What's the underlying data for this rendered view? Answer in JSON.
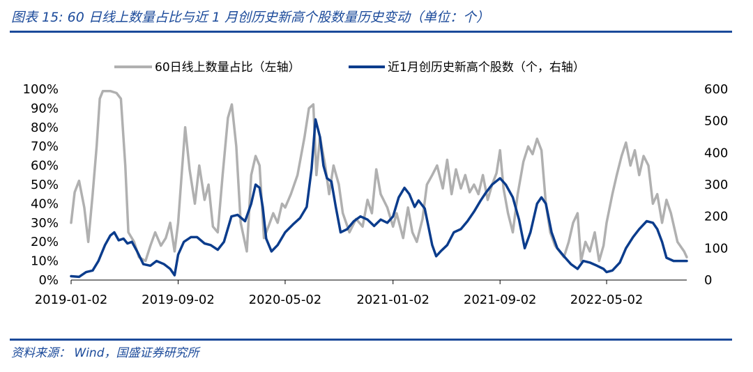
{
  "header": {
    "title": "图表 15:  60 日线上数量占比与近 1 月创历史新高个股数量历史变动（单位：个）"
  },
  "footer": {
    "source": "资料来源：  Wind，国盛证券研究所"
  },
  "colors": {
    "series_left": "#b0b0b0",
    "series_right": "#0b3c8c",
    "accent": "#1b4a9a"
  },
  "chart_data": {
    "type": "line",
    "legend": {
      "position": "top",
      "entries": [
        "60日线上数量占比（左轴）",
        "近1月创历史新高个股数（个，右轴）"
      ]
    },
    "x_tick_labels": [
      "2019-01-02",
      "2019-09-02",
      "2020-05-02",
      "2021-01-02",
      "2021-09-02",
      "2022-05-02"
    ],
    "x_tick_dates": [
      "2019-01-02",
      "2019-09-02",
      "2020-05-02",
      "2021-01-02",
      "2021-09-02",
      "2022-05-02"
    ],
    "x_range": [
      "2019-01-02",
      "2022-10-31"
    ],
    "y_left": {
      "ylim": [
        0,
        100
      ],
      "ticks": [
        "0%",
        "10%",
        "20%",
        "30%",
        "40%",
        "50%",
        "60%",
        "70%",
        "80%",
        "90%",
        "100%"
      ],
      "unit": "%"
    },
    "y_right": {
      "ylim": [
        0,
        600
      ],
      "ticks": [
        "0",
        "100",
        "200",
        "300",
        "400",
        "500",
        "600"
      ]
    },
    "grid": false,
    "series": [
      {
        "name": "60日线上数量占比（左轴）",
        "axis": "left",
        "points": [
          [
            "2019-01-02",
            30
          ],
          [
            "2019-01-10",
            46
          ],
          [
            "2019-01-20",
            52
          ],
          [
            "2019-02-01",
            38
          ],
          [
            "2019-02-10",
            20
          ],
          [
            "2019-02-20",
            45
          ],
          [
            "2019-03-01",
            70
          ],
          [
            "2019-03-08",
            95
          ],
          [
            "2019-03-15",
            99
          ],
          [
            "2019-04-01",
            99
          ],
          [
            "2019-04-15",
            98
          ],
          [
            "2019-04-25",
            95
          ],
          [
            "2019-05-05",
            60
          ],
          [
            "2019-05-12",
            25
          ],
          [
            "2019-05-25",
            20
          ],
          [
            "2019-06-05",
            12
          ],
          [
            "2019-06-20",
            10
          ],
          [
            "2019-07-01",
            18
          ],
          [
            "2019-07-12",
            25
          ],
          [
            "2019-07-25",
            18
          ],
          [
            "2019-08-05",
            22
          ],
          [
            "2019-08-15",
            30
          ],
          [
            "2019-08-25",
            15
          ],
          [
            "2019-09-02",
            30
          ],
          [
            "2019-09-10",
            55
          ],
          [
            "2019-09-18",
            80
          ],
          [
            "2019-09-28",
            58
          ],
          [
            "2019-10-10",
            40
          ],
          [
            "2019-10-20",
            60
          ],
          [
            "2019-11-01",
            42
          ],
          [
            "2019-11-10",
            50
          ],
          [
            "2019-11-20",
            28
          ],
          [
            "2019-12-01",
            25
          ],
          [
            "2019-12-12",
            55
          ],
          [
            "2019-12-24",
            85
          ],
          [
            "2020-01-02",
            92
          ],
          [
            "2020-01-12",
            70
          ],
          [
            "2020-01-22",
            30
          ],
          [
            "2020-02-05",
            15
          ],
          [
            "2020-02-15",
            55
          ],
          [
            "2020-02-25",
            65
          ],
          [
            "2020-03-05",
            60
          ],
          [
            "2020-03-15",
            22
          ],
          [
            "2020-03-25",
            28
          ],
          [
            "2020-04-05",
            35
          ],
          [
            "2020-04-15",
            30
          ],
          [
            "2020-04-25",
            40
          ],
          [
            "2020-05-02",
            38
          ],
          [
            "2020-05-15",
            45
          ],
          [
            "2020-05-30",
            55
          ],
          [
            "2020-06-15",
            75
          ],
          [
            "2020-06-25",
            90
          ],
          [
            "2020-07-05",
            92
          ],
          [
            "2020-07-12",
            55
          ],
          [
            "2020-07-20",
            75
          ],
          [
            "2020-08-01",
            60
          ],
          [
            "2020-08-10",
            45
          ],
          [
            "2020-08-20",
            60
          ],
          [
            "2020-09-01",
            50
          ],
          [
            "2020-09-10",
            35
          ],
          [
            "2020-09-25",
            25
          ],
          [
            "2020-10-10",
            32
          ],
          [
            "2020-10-25",
            28
          ],
          [
            "2020-11-05",
            42
          ],
          [
            "2020-11-15",
            35
          ],
          [
            "2020-11-25",
            58
          ],
          [
            "2020-12-05",
            45
          ],
          [
            "2020-12-20",
            38
          ],
          [
            "2021-01-02",
            28
          ],
          [
            "2021-01-10",
            35
          ],
          [
            "2021-01-25",
            22
          ],
          [
            "2021-02-05",
            38
          ],
          [
            "2021-02-15",
            25
          ],
          [
            "2021-02-25",
            20
          ],
          [
            "2021-03-10",
            32
          ],
          [
            "2021-03-20",
            50
          ],
          [
            "2021-04-01",
            55
          ],
          [
            "2021-04-12",
            60
          ],
          [
            "2021-04-25",
            48
          ],
          [
            "2021-05-05",
            63
          ],
          [
            "2021-05-15",
            45
          ],
          [
            "2021-05-25",
            58
          ],
          [
            "2021-06-05",
            48
          ],
          [
            "2021-06-15",
            55
          ],
          [
            "2021-06-25",
            46
          ],
          [
            "2021-07-05",
            50
          ],
          [
            "2021-07-15",
            45
          ],
          [
            "2021-07-25",
            55
          ],
          [
            "2021-08-05",
            42
          ],
          [
            "2021-08-15",
            50
          ],
          [
            "2021-08-25",
            56
          ],
          [
            "2021-09-02",
            68
          ],
          [
            "2021-09-10",
            48
          ],
          [
            "2021-09-20",
            35
          ],
          [
            "2021-10-01",
            25
          ],
          [
            "2021-10-12",
            45
          ],
          [
            "2021-10-25",
            62
          ],
          [
            "2021-11-05",
            70
          ],
          [
            "2021-11-15",
            66
          ],
          [
            "2021-11-25",
            74
          ],
          [
            "2021-12-05",
            68
          ],
          [
            "2021-12-15",
            40
          ],
          [
            "2021-12-25",
            25
          ],
          [
            "2022-01-05",
            18
          ],
          [
            "2022-01-15",
            15
          ],
          [
            "2022-01-25",
            12
          ],
          [
            "2022-02-05",
            20
          ],
          [
            "2022-02-15",
            30
          ],
          [
            "2022-02-25",
            35
          ],
          [
            "2022-03-05",
            10
          ],
          [
            "2022-03-15",
            20
          ],
          [
            "2022-03-25",
            15
          ],
          [
            "2022-04-05",
            25
          ],
          [
            "2022-04-15",
            10
          ],
          [
            "2022-04-25",
            18
          ],
          [
            "2022-05-02",
            30
          ],
          [
            "2022-05-15",
            45
          ],
          [
            "2022-05-25",
            55
          ],
          [
            "2022-06-05",
            65
          ],
          [
            "2022-06-15",
            72
          ],
          [
            "2022-06-25",
            60
          ],
          [
            "2022-07-05",
            68
          ],
          [
            "2022-07-15",
            55
          ],
          [
            "2022-07-25",
            65
          ],
          [
            "2022-08-05",
            60
          ],
          [
            "2022-08-15",
            40
          ],
          [
            "2022-08-25",
            45
          ],
          [
            "2022-09-05",
            30
          ],
          [
            "2022-09-15",
            42
          ],
          [
            "2022-09-25",
            35
          ],
          [
            "2022-10-10",
            20
          ],
          [
            "2022-10-25",
            15
          ],
          [
            "2022-10-31",
            12
          ]
        ]
      },
      {
        "name": "近1月创历史新高个股数（个，右轴）",
        "axis": "right",
        "points": [
          [
            "2019-01-02",
            12
          ],
          [
            "2019-01-20",
            10
          ],
          [
            "2019-02-05",
            25
          ],
          [
            "2019-02-20",
            30
          ],
          [
            "2019-03-05",
            60
          ],
          [
            "2019-03-20",
            110
          ],
          [
            "2019-04-01",
            140
          ],
          [
            "2019-04-10",
            150
          ],
          [
            "2019-04-20",
            125
          ],
          [
            "2019-05-01",
            130
          ],
          [
            "2019-05-10",
            115
          ],
          [
            "2019-05-20",
            120
          ],
          [
            "2019-06-01",
            90
          ],
          [
            "2019-06-15",
            50
          ],
          [
            "2019-07-01",
            45
          ],
          [
            "2019-07-15",
            60
          ],
          [
            "2019-08-01",
            50
          ],
          [
            "2019-08-15",
            35
          ],
          [
            "2019-08-25",
            15
          ],
          [
            "2019-09-02",
            80
          ],
          [
            "2019-09-15",
            120
          ],
          [
            "2019-10-01",
            135
          ],
          [
            "2019-10-15",
            135
          ],
          [
            "2019-11-01",
            115
          ],
          [
            "2019-11-15",
            110
          ],
          [
            "2019-12-01",
            95
          ],
          [
            "2019-12-15",
            120
          ],
          [
            "2020-01-01",
            200
          ],
          [
            "2020-01-15",
            205
          ],
          [
            "2020-02-01",
            185
          ],
          [
            "2020-02-15",
            240
          ],
          [
            "2020-02-25",
            300
          ],
          [
            "2020-03-05",
            290
          ],
          [
            "2020-03-12",
            230
          ],
          [
            "2020-03-20",
            130
          ],
          [
            "2020-04-01",
            90
          ],
          [
            "2020-04-15",
            110
          ],
          [
            "2020-05-02",
            150
          ],
          [
            "2020-05-20",
            175
          ],
          [
            "2020-06-05",
            195
          ],
          [
            "2020-06-20",
            230
          ],
          [
            "2020-07-01",
            350
          ],
          [
            "2020-07-10",
            505
          ],
          [
            "2020-07-20",
            450
          ],
          [
            "2020-07-28",
            360
          ],
          [
            "2020-08-05",
            320
          ],
          [
            "2020-08-15",
            310
          ],
          [
            "2020-08-25",
            230
          ],
          [
            "2020-09-05",
            150
          ],
          [
            "2020-09-20",
            160
          ],
          [
            "2020-10-05",
            185
          ],
          [
            "2020-10-20",
            200
          ],
          [
            "2020-11-05",
            190
          ],
          [
            "2020-11-20",
            170
          ],
          [
            "2020-12-05",
            190
          ],
          [
            "2020-12-20",
            180
          ],
          [
            "2021-01-02",
            200
          ],
          [
            "2021-01-15",
            260
          ],
          [
            "2021-01-28",
            290
          ],
          [
            "2021-02-08",
            270
          ],
          [
            "2021-02-20",
            230
          ],
          [
            "2021-03-01",
            250
          ],
          [
            "2021-03-15",
            225
          ],
          [
            "2021-04-01",
            110
          ],
          [
            "2021-04-10",
            75
          ],
          [
            "2021-04-20",
            90
          ],
          [
            "2021-05-05",
            110
          ],
          [
            "2021-05-20",
            150
          ],
          [
            "2021-06-05",
            160
          ],
          [
            "2021-06-20",
            185
          ],
          [
            "2021-07-05",
            215
          ],
          [
            "2021-07-20",
            250
          ],
          [
            "2021-08-01",
            275
          ],
          [
            "2021-08-15",
            300
          ],
          [
            "2021-09-02",
            320
          ],
          [
            "2021-09-15",
            300
          ],
          [
            "2021-10-01",
            260
          ],
          [
            "2021-10-15",
            190
          ],
          [
            "2021-10-28",
            100
          ],
          [
            "2021-11-10",
            150
          ],
          [
            "2021-11-25",
            240
          ],
          [
            "2021-12-05",
            260
          ],
          [
            "2021-12-15",
            240
          ],
          [
            "2021-12-28",
            150
          ],
          [
            "2022-01-10",
            100
          ],
          [
            "2022-01-25",
            75
          ],
          [
            "2022-02-10",
            50
          ],
          [
            "2022-02-25",
            35
          ],
          [
            "2022-03-10",
            60
          ],
          [
            "2022-03-25",
            55
          ],
          [
            "2022-04-10",
            45
          ],
          [
            "2022-04-25",
            35
          ],
          [
            "2022-05-02",
            25
          ],
          [
            "2022-05-15",
            30
          ],
          [
            "2022-06-01",
            55
          ],
          [
            "2022-06-15",
            100
          ],
          [
            "2022-07-01",
            135
          ],
          [
            "2022-07-15",
            160
          ],
          [
            "2022-08-01",
            185
          ],
          [
            "2022-08-15",
            180
          ],
          [
            "2022-08-25",
            160
          ],
          [
            "2022-09-05",
            120
          ],
          [
            "2022-09-15",
            70
          ],
          [
            "2022-10-01",
            60
          ],
          [
            "2022-10-31",
            60
          ]
        ]
      }
    ]
  }
}
